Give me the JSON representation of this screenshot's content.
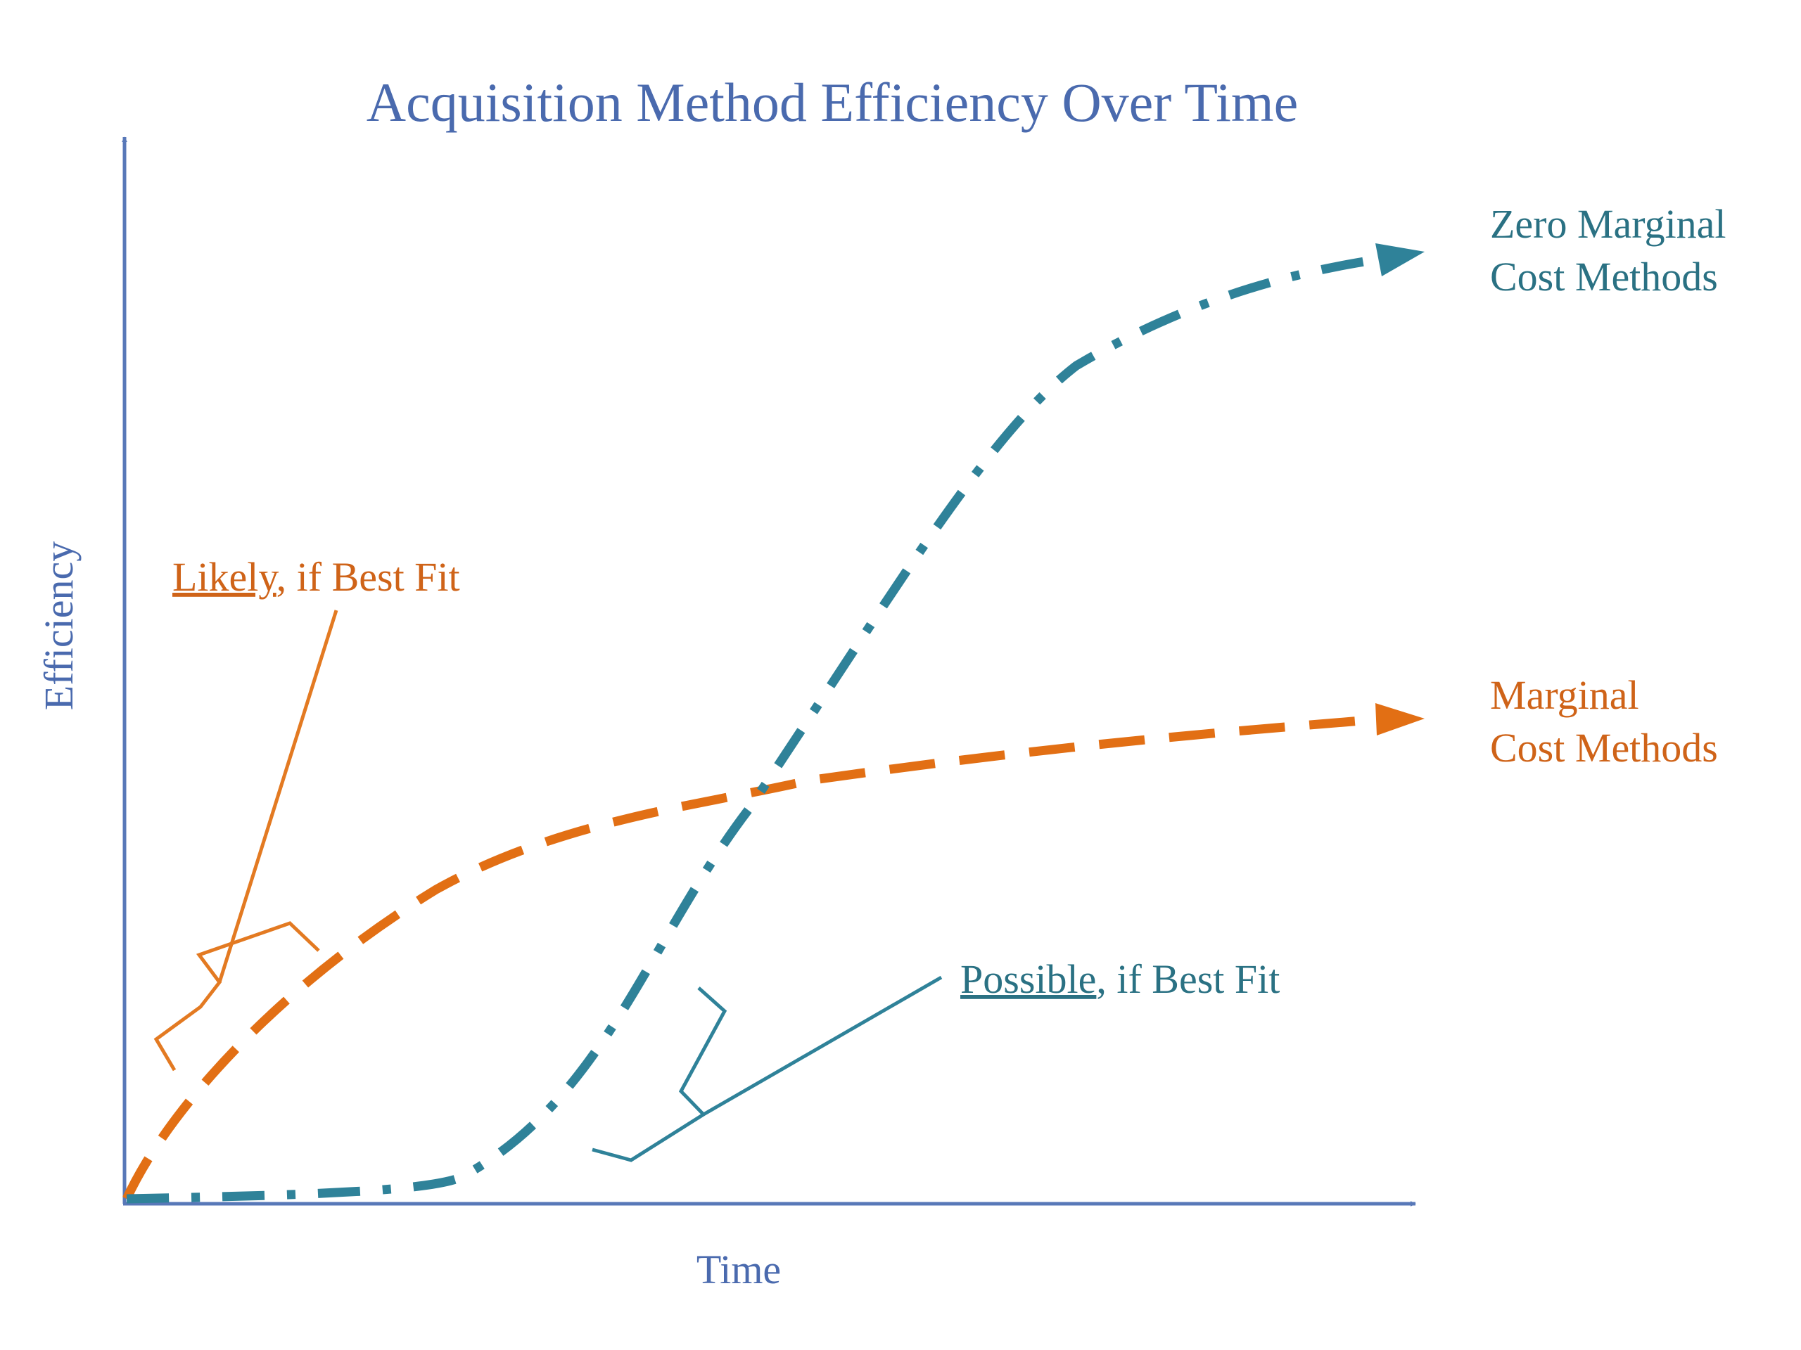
{
  "title": "Acquisition Method Efficiency Over Time",
  "axes": {
    "x_label": "Time",
    "y_label": "Efficiency"
  },
  "curves": {
    "zero_marginal": {
      "label_line1": "Zero Marginal",
      "label_line2": "Cost Methods",
      "description": "S-curve: starts near zero, rises steeply mid-time, plateaus high"
    },
    "marginal": {
      "label_line1": "Marginal",
      "label_line2": "Cost Methods",
      "description": "Concave curve: rises quickly early, then flattens at a moderate level"
    }
  },
  "annotations": {
    "likely": {
      "underlined": "Likely",
      "rest": ", if Best Fit"
    },
    "possible": {
      "underlined": "Possible",
      "rest": ", if Best Fit"
    }
  },
  "colors": {
    "axis": "#5878b8",
    "title": "#4a6aae",
    "teal": "#2f8299",
    "teal_text": "#2a7183",
    "orange": "#e26f14",
    "orange_text": "#cf6318",
    "orange_bracket": "#e37a22"
  }
}
